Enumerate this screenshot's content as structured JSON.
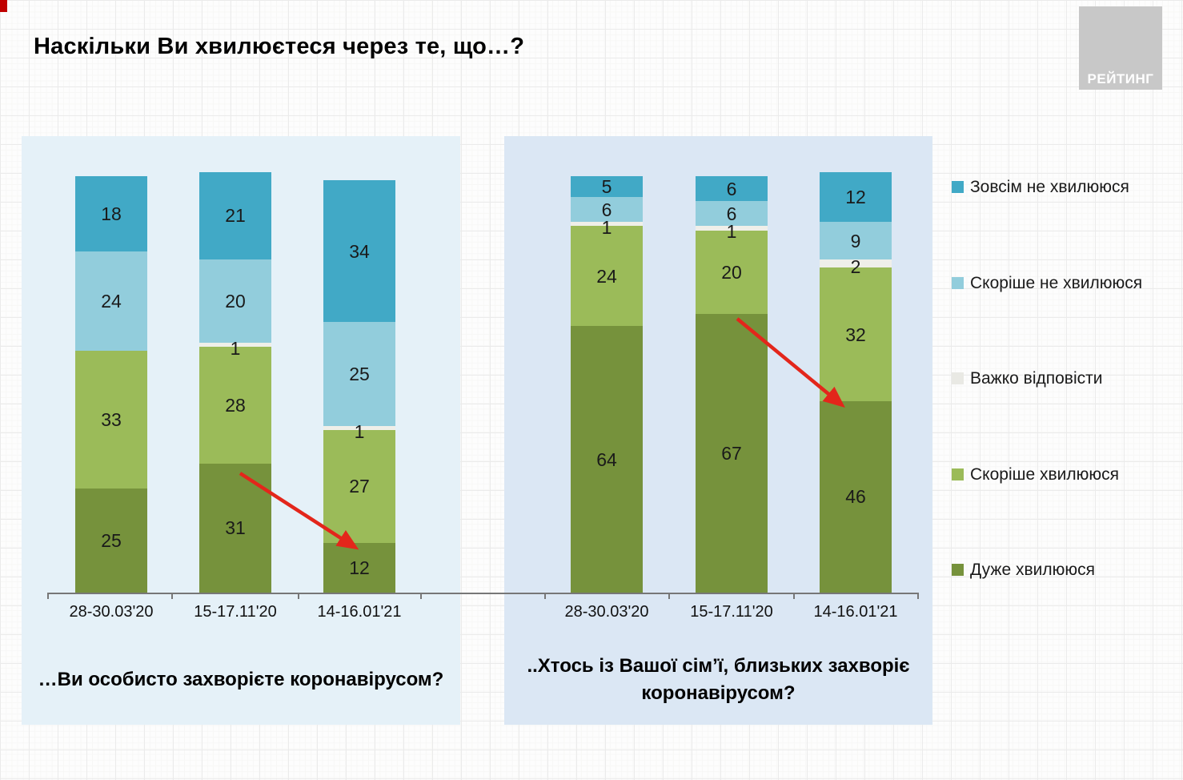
{
  "page": {
    "title": "Наскільки Ви хвилюєтеся через те, що…?",
    "logo_text": "РЕЙТИНГ"
  },
  "legend": {
    "position": "right",
    "items": [
      {
        "label": "Зовсім не хвилююся",
        "color": "#41a9c6"
      },
      {
        "label": "Скоріше не хвилююся",
        "color": "#92cddc"
      },
      {
        "label": "Важко відповісти",
        "color": "#e9e9e4"
      },
      {
        "label": "Скоріше хвилююся",
        "color": "#9bbb59"
      },
      {
        "label": "Дуже хвилююся",
        "color": "#76923c"
      }
    ]
  },
  "chart_data": [
    {
      "type": "bar",
      "stacked": true,
      "units": "percent",
      "ylim": [
        0,
        100
      ],
      "grid": false,
      "title": "…Ви особисто захворієте коронавірусом?",
      "categories": [
        "28-30.03'20",
        "15-17.11'20",
        "14-16.01'21"
      ],
      "series": [
        {
          "name": "Дуже хвилююся",
          "color": "#76923c",
          "values": [
            25,
            31,
            12
          ]
        },
        {
          "name": "Скоріше хвилююся",
          "color": "#9bbb59",
          "values": [
            33,
            28,
            27
          ]
        },
        {
          "name": "Важко відповісти",
          "color": "#efefe9",
          "values": [
            0,
            1,
            1
          ]
        },
        {
          "name": "Скоріше не хвилююся",
          "color": "#92cddc",
          "values": [
            24,
            20,
            25
          ]
        },
        {
          "name": "Зовсім не хвилююся",
          "color": "#41a9c6",
          "values": [
            18,
            21,
            34
          ]
        }
      ],
      "trend_arrow": {
        "series": "Дуже хвилююся",
        "from_category": "15-17.11'20",
        "to_category": "14-16.01'21",
        "color": "#e3261b"
      }
    },
    {
      "type": "bar",
      "stacked": true,
      "units": "percent",
      "ylim": [
        0,
        100
      ],
      "grid": false,
      "title": "..Хтось із Вашої сім’ї, близьких захворіє коронавірусом?",
      "categories": [
        "28-30.03'20",
        "15-17.11'20",
        "14-16.01'21"
      ],
      "series": [
        {
          "name": "Дуже хвилююся",
          "color": "#76923c",
          "values": [
            64,
            67,
            46
          ]
        },
        {
          "name": "Скоріше хвилююся",
          "color": "#9bbb59",
          "values": [
            24,
            20,
            32
          ]
        },
        {
          "name": "Важко відповісти",
          "color": "#efefe9",
          "values": [
            1,
            1,
            2
          ]
        },
        {
          "name": "Скоріше не хвилююся",
          "color": "#92cddc",
          "values": [
            6,
            6,
            9
          ]
        },
        {
          "name": "Зовсім не хвилююся",
          "color": "#41a9c6",
          "values": [
            5,
            6,
            12
          ]
        }
      ],
      "trend_arrow": {
        "series": "Дуже хвилююся",
        "from_category": "15-17.11'20",
        "to_category": "14-16.01'21",
        "color": "#e3261b"
      }
    }
  ]
}
